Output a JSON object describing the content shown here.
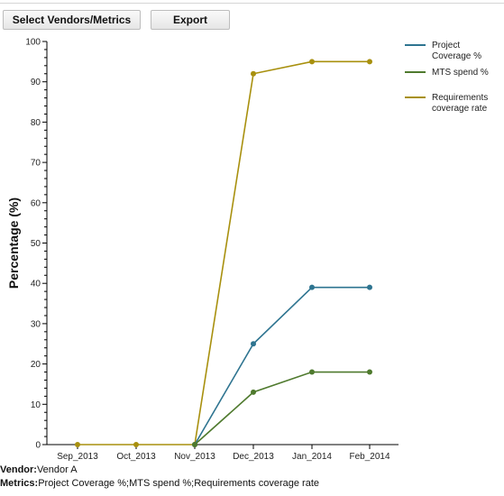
{
  "toolbar": {
    "select_label": "Select Vendors/Metrics",
    "export_label": "Export"
  },
  "footer": {
    "vendor_key": "Vendor:",
    "vendor_value": "Vendor A",
    "metrics_key": "Metrics:",
    "metrics_value": "Project Coverage %;MTS spend %;Requirements coverage rate"
  },
  "chart_data": {
    "type": "line",
    "ylabel": "Percentage (%)",
    "xlabel": "",
    "categories": [
      "Sep_2013",
      "Oct_2013",
      "Nov_2013",
      "Dec_2013",
      "Jan_2014",
      "Feb_2014"
    ],
    "ylim": [
      0,
      100
    ],
    "yticks": [
      0,
      10,
      20,
      30,
      40,
      50,
      60,
      70,
      80,
      90,
      100
    ],
    "grid": false,
    "legend_position": "top-right",
    "series": [
      {
        "name": "Project Coverage %",
        "legend_lines": [
          "Project",
          "Coverage %"
        ],
        "color": "#2e7490",
        "values": [
          null,
          null,
          0,
          25,
          39,
          39
        ]
      },
      {
        "name": "MTS spend %",
        "legend_lines": [
          "MTS spend %"
        ],
        "color": "#4f7a2e",
        "values": [
          null,
          null,
          0,
          13,
          18,
          18
        ]
      },
      {
        "name": "Requirements coverage rate",
        "legend_lines": [
          "Requirements",
          "coverage rate"
        ],
        "color": "#a8900e",
        "values": [
          0,
          0,
          0,
          92,
          95,
          95
        ]
      }
    ]
  }
}
